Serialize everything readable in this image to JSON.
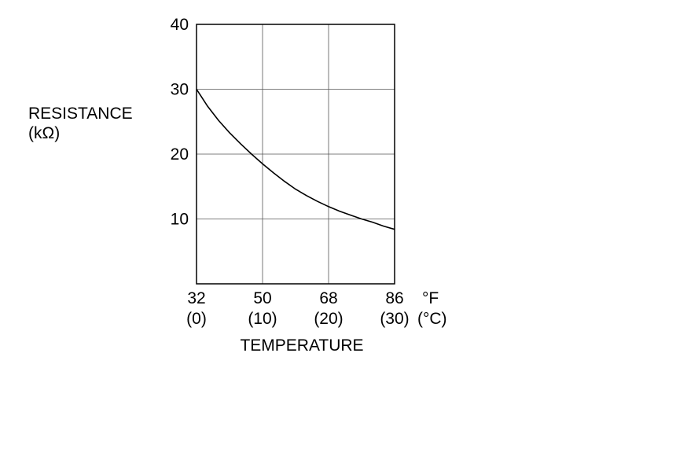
{
  "chart_data": {
    "type": "line",
    "ylabel_line1": "RESISTANCE",
    "ylabel_line2": "(kΩ)",
    "xlabel": "TEMPERATURE",
    "x_unit_primary": "°F",
    "x_unit_secondary": "(°C)",
    "x_ticks": [
      "32",
      "50",
      "68",
      "86"
    ],
    "x_ticks_secondary": [
      "(0)",
      "(10)",
      "(20)",
      "(30)"
    ],
    "y_ticks": [
      "10",
      "20",
      "30",
      "40"
    ],
    "xlim": [
      32,
      86
    ],
    "ylim": [
      0,
      40
    ],
    "grid": true,
    "series": [
      {
        "x": [
          32,
          35,
          38,
          41,
          44,
          47,
          50,
          53,
          56,
          59,
          62,
          65,
          68,
          71,
          74,
          77,
          80,
          83,
          86
        ],
        "y": [
          30.0,
          27.4,
          25.2,
          23.3,
          21.6,
          20.0,
          18.5,
          17.1,
          15.8,
          14.6,
          13.6,
          12.7,
          11.9,
          11.2,
          10.6,
          10.0,
          9.5,
          8.9,
          8.4
        ]
      }
    ]
  }
}
